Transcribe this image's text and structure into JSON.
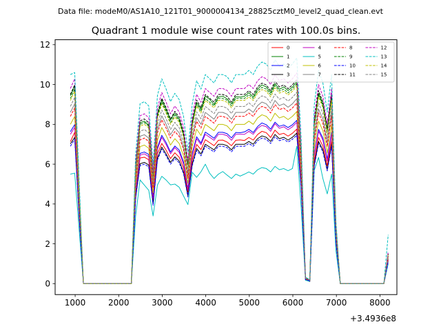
{
  "figure": {
    "suptitle": "Data file: modeM0/AS1A10_121T01_9000004134_28825cztM0_level2_quad_clean.evt",
    "title": "Quadrant 1 module wise count rates with 100.0s bins.",
    "x_offset_label": "+3.4936e8"
  },
  "chart_data": {
    "type": "line",
    "title": "Quadrant 1 module wise count rates with 100.0s bins.",
    "xlabel": "",
    "ylabel": "",
    "x_offset": 349360000,
    "xlim": [
      540,
      8390
    ],
    "ylim": [
      -0.55,
      12.25
    ],
    "xticks": [
      1000,
      2000,
      3000,
      4000,
      5000,
      6000,
      7000,
      8000
    ],
    "xtick_labels": [
      "1000",
      "2000",
      "3000",
      "4000",
      "5000",
      "6000",
      "7000",
      "8000"
    ],
    "yticks": [
      0,
      2,
      4,
      6,
      8,
      10,
      12
    ],
    "ytick_labels": [
      "0",
      "2",
      "4",
      "6",
      "8",
      "10",
      "12"
    ],
    "grid": false,
    "legend_position": "top-right",
    "profile": {
      "x": [
        890,
        990,
        1090,
        1190,
        2290,
        2390,
        2490,
        2590,
        2690,
        2790,
        2890,
        2990,
        3090,
        3190,
        3290,
        3390,
        3490,
        3590,
        3690,
        3790,
        3890,
        3990,
        4090,
        4190,
        4290,
        4390,
        4490,
        4590,
        4690,
        4790,
        4890,
        4990,
        5090,
        5190,
        5290,
        5390,
        5490,
        5590,
        5690,
        5790,
        5890,
        5990,
        6090,
        6190,
        6290,
        6390,
        6490,
        6590,
        6690,
        6790,
        6890,
        6990,
        7090,
        8090,
        8190
      ],
      "w": [
        1.0,
        1.0,
        0.5,
        0.0,
        0.0,
        0.62,
        0.86,
        0.87,
        0.85,
        0.57,
        0.9,
        0.98,
        0.93,
        0.87,
        0.91,
        0.88,
        0.8,
        0.63,
        0.86,
        0.97,
        0.93,
        1.0,
        0.98,
        0.96,
        1.0,
        1.0,
        0.99,
        0.96,
        1.0,
        1.0,
        1.0,
        1.02,
        1.0,
        1.04,
        1.06,
        1.05,
        1.02,
        1.07,
        1.04,
        1.05,
        1.03,
        1.05,
        1.08,
        0.7,
        0.03,
        0.02,
        0.85,
        1.02,
        0.96,
        0.82,
        1.0,
        0.3,
        0.0,
        0.0,
        0.16
      ]
    },
    "series": [
      {
        "name": "0",
        "color": "#ff0000",
        "dashed": false,
        "level": 7.2,
        "values": [
          7.13,
          7.6,
          3.4,
          0,
          0,
          4.62,
          6.31,
          6.35,
          6.22,
          4.11,
          6.53,
          7.04,
          6.7,
          6.28,
          6.57,
          6.35,
          5.81,
          4.6,
          6.23,
          6.99,
          6.73,
          7.23,
          7.08,
          6.93,
          7.2,
          7.21,
          7.11,
          6.93,
          7.2,
          7.22,
          7.19,
          7.34,
          7.21,
          7.49,
          7.65,
          7.58,
          7.34,
          7.71,
          7.49,
          7.55,
          7.41,
          7.55,
          7.76,
          5.02,
          0.2,
          0.1,
          6.12,
          7.34,
          6.91,
          5.92,
          7.19,
          2.15,
          0,
          0,
          1.2
        ]
      },
      {
        "name": "1",
        "color": "#008000",
        "dashed": false,
        "level": 9.4,
        "values": [
          9.44,
          9.91,
          4.72,
          0,
          0,
          5.87,
          8.08,
          8.16,
          7.96,
          5.39,
          8.49,
          9.22,
          8.74,
          8.22,
          8.56,
          8.25,
          7.51,
          5.94,
          8.12,
          9.1,
          8.76,
          9.42,
          9.25,
          9.0,
          9.38,
          9.41,
          9.28,
          9.03,
          9.39,
          9.37,
          9.41,
          9.59,
          9.38,
          9.77,
          9.98,
          9.88,
          9.59,
          10.05,
          9.76,
          9.88,
          9.7,
          9.87,
          10.15,
          6.58,
          0.28,
          0.19,
          7.99,
          9.56,
          9.02,
          7.72,
          9.4,
          2.82,
          0,
          0,
          1.5
        ]
      },
      {
        "name": "2",
        "color": "#0000ff",
        "dashed": false,
        "level": 7.6,
        "values": [
          7.63,
          7.99,
          3.81,
          0,
          0,
          4.69,
          6.54,
          6.61,
          6.49,
          4.35,
          6.84,
          7.45,
          7.08,
          6.61,
          6.91,
          6.71,
          6.1,
          4.77,
          6.54,
          7.38,
          7.06,
          7.61,
          7.46,
          7.3,
          7.6,
          7.6,
          7.53,
          7.32,
          7.59,
          7.58,
          7.62,
          7.75,
          7.59,
          7.89,
          8.07,
          7.98,
          7.76,
          8.11,
          7.9,
          7.97,
          7.84,
          7.98,
          8.2,
          5.31,
          0.23,
          0.15,
          6.45,
          7.75,
          7.31,
          6.25,
          7.6,
          2.28,
          0,
          0,
          1.25
        ]
      },
      {
        "name": "3",
        "color": "#000000",
        "dashed": false,
        "level": 7.0,
        "values": [
          7.02,
          7.35,
          3.51,
          0,
          0,
          4.34,
          6.02,
          6.09,
          5.96,
          4.0,
          6.3,
          6.86,
          6.51,
          6.09,
          6.37,
          6.16,
          5.6,
          4.41,
          6.02,
          6.79,
          6.51,
          7.0,
          6.86,
          6.72,
          7.0,
          7.0,
          6.93,
          6.72,
          7.0,
          7.0,
          7.0,
          7.14,
          7.0,
          7.28,
          7.42,
          7.35,
          7.14,
          7.49,
          7.28,
          7.35,
          7.21,
          7.35,
          7.56,
          4.9,
          0.21,
          0.14,
          5.95,
          7.14,
          6.72,
          5.74,
          7.0,
          2.1,
          0,
          0,
          1.15
        ]
      },
      {
        "name": "4",
        "color": "#bf00bf",
        "dashed": false,
        "level": 7.5,
        "values": [
          7.5,
          7.85,
          3.75,
          0,
          0,
          4.65,
          6.45,
          6.52,
          6.38,
          4.28,
          6.75,
          7.35,
          6.98,
          6.52,
          6.83,
          6.6,
          6.0,
          4.72,
          6.45,
          7.28,
          6.98,
          7.5,
          7.35,
          7.2,
          7.5,
          7.5,
          7.43,
          7.2,
          7.5,
          7.5,
          7.5,
          7.65,
          7.5,
          7.8,
          7.95,
          7.88,
          7.65,
          8.03,
          7.8,
          7.88,
          7.73,
          7.88,
          8.1,
          5.25,
          0.22,
          0.15,
          6.38,
          7.65,
          7.2,
          6.15,
          7.5,
          2.25,
          0,
          0,
          1.2
        ]
      },
      {
        "name": "5",
        "color": "#00bfbf",
        "dashed": false,
        "level": 5.5,
        "values": [
          5.5,
          5.55,
          2.75,
          0,
          0,
          3.41,
          5.21,
          4.95,
          4.69,
          3.4,
          4.95,
          5.39,
          5.2,
          4.96,
          5.0,
          4.84,
          4.4,
          3.97,
          5.59,
          5.34,
          5.62,
          6.0,
          5.54,
          5.28,
          5.5,
          5.63,
          5.45,
          5.28,
          5.5,
          5.4,
          5.5,
          5.61,
          5.5,
          5.72,
          5.83,
          5.78,
          5.61,
          5.89,
          5.72,
          5.78,
          5.67,
          5.78,
          6.9,
          3.85,
          0.17,
          0.11,
          5.68,
          6.34,
          5.28,
          4.51,
          5.5,
          1.65,
          0,
          0,
          1.0
        ]
      },
      {
        "name": "6",
        "color": "#bfbf00",
        "dashed": false,
        "level": 8.0,
        "values": [
          8.0,
          8.4,
          4.0,
          0,
          0,
          4.96,
          6.88,
          6.96,
          6.8,
          4.56,
          7.2,
          7.84,
          7.44,
          6.96,
          7.28,
          7.04,
          6.4,
          5.04,
          6.88,
          7.76,
          7.44,
          8.0,
          7.84,
          7.68,
          8.0,
          8.0,
          7.92,
          7.68,
          8.0,
          8.0,
          8.0,
          8.16,
          8.0,
          8.32,
          8.48,
          8.4,
          8.16,
          8.56,
          8.32,
          8.4,
          8.24,
          8.4,
          8.64,
          5.6,
          0.24,
          0.16,
          6.8,
          8.16,
          7.68,
          6.56,
          8.0,
          2.4,
          0,
          0,
          1.3
        ]
      },
      {
        "name": "7",
        "color": "#808080",
        "dashed": false,
        "level": 8.6,
        "values": [
          8.6,
          9.03,
          4.3,
          0,
          0,
          5.33,
          7.4,
          7.48,
          7.31,
          4.9,
          7.74,
          8.43,
          8.0,
          7.48,
          7.83,
          7.57,
          6.88,
          5.42,
          7.4,
          8.34,
          8.0,
          8.6,
          8.43,
          8.26,
          8.6,
          8.6,
          8.51,
          8.26,
          8.6,
          8.6,
          8.6,
          8.77,
          8.6,
          8.94,
          9.12,
          9.03,
          8.77,
          9.2,
          8.94,
          9.03,
          8.86,
          9.03,
          9.29,
          6.02,
          0.26,
          0.17,
          7.31,
          8.77,
          8.26,
          7.05,
          8.6,
          2.58,
          0,
          0,
          1.4
        ]
      },
      {
        "name": "8",
        "color": "#ff0000",
        "dashed": true,
        "level": 8.4,
        "values": [
          8.4,
          8.82,
          4.2,
          0,
          0,
          5.21,
          7.22,
          7.31,
          7.14,
          4.79,
          7.56,
          8.23,
          7.81,
          7.31,
          7.64,
          7.39,
          6.72,
          5.29,
          7.22,
          8.15,
          7.81,
          8.4,
          8.23,
          8.06,
          8.4,
          8.4,
          8.32,
          8.06,
          8.4,
          8.4,
          8.4,
          8.57,
          8.4,
          8.74,
          8.9,
          8.82,
          8.57,
          8.99,
          8.74,
          8.82,
          8.65,
          8.82,
          9.07,
          5.88,
          0.25,
          0.17,
          7.14,
          8.57,
          8.06,
          6.89,
          8.4,
          2.52,
          0,
          0,
          1.35
        ]
      },
      {
        "name": "9",
        "color": "#008000",
        "dashed": true,
        "level": 9.3,
        "values": [
          9.3,
          9.77,
          4.65,
          0,
          0,
          5.77,
          8.0,
          8.09,
          7.91,
          5.3,
          8.37,
          9.11,
          8.65,
          8.09,
          8.46,
          8.18,
          7.44,
          5.86,
          8.0,
          9.02,
          8.65,
          9.3,
          9.11,
          8.93,
          9.3,
          9.3,
          9.21,
          8.93,
          9.3,
          9.3,
          9.3,
          9.49,
          9.3,
          9.67,
          9.86,
          9.77,
          9.49,
          9.95,
          9.67,
          9.77,
          9.58,
          9.77,
          10.04,
          6.51,
          0.28,
          0.19,
          7.91,
          9.49,
          8.93,
          7.63,
          9.3,
          2.79,
          0,
          0,
          1.5
        ]
      },
      {
        "name": "10",
        "color": "#0000ff",
        "dashed": true,
        "level": 6.9,
        "values": [
          6.9,
          7.25,
          3.45,
          0,
          0,
          4.28,
          5.93,
          6.0,
          5.87,
          3.93,
          6.21,
          6.76,
          6.42,
          6.0,
          6.28,
          6.07,
          5.52,
          4.35,
          5.93,
          6.69,
          6.42,
          6.9,
          6.76,
          6.62,
          6.9,
          6.9,
          6.83,
          6.62,
          6.9,
          6.9,
          6.9,
          7.04,
          6.9,
          7.18,
          7.31,
          7.25,
          7.04,
          7.38,
          7.18,
          7.25,
          7.11,
          7.25,
          7.45,
          4.83,
          0.21,
          0.14,
          5.87,
          7.04,
          6.62,
          5.66,
          6.9,
          2.07,
          0,
          0,
          1.1
        ]
      },
      {
        "name": "11",
        "color": "#000000",
        "dashed": true,
        "level": 9.5,
        "values": [
          9.5,
          9.98,
          4.75,
          0,
          0,
          5.89,
          8.17,
          8.27,
          8.08,
          5.42,
          8.55,
          9.31,
          8.84,
          8.27,
          8.65,
          8.36,
          7.6,
          5.99,
          8.17,
          9.22,
          8.84,
          9.5,
          9.31,
          9.12,
          9.5,
          9.5,
          9.41,
          9.12,
          9.5,
          9.5,
          9.5,
          9.69,
          9.5,
          9.88,
          10.07,
          9.98,
          9.69,
          10.17,
          9.88,
          9.98,
          9.79,
          9.98,
          10.26,
          6.65,
          0.29,
          0.19,
          8.08,
          9.69,
          9.12,
          7.79,
          9.5,
          2.85,
          0,
          0,
          1.5
        ]
      },
      {
        "name": "12",
        "color": "#bf00bf",
        "dashed": true,
        "level": 9.8,
        "values": [
          9.8,
          10.29,
          4.9,
          0,
          0,
          6.08,
          8.43,
          8.53,
          8.33,
          5.59,
          8.82,
          9.6,
          9.11,
          8.53,
          8.92,
          8.62,
          7.84,
          6.17,
          8.43,
          9.51,
          9.11,
          9.8,
          9.6,
          9.41,
          9.8,
          9.8,
          9.7,
          9.41,
          9.8,
          9.8,
          9.8,
          10.0,
          9.8,
          10.19,
          10.39,
          10.29,
          10.0,
          10.49,
          10.19,
          10.29,
          10.09,
          10.29,
          10.58,
          6.86,
          0.29,
          0.2,
          8.33,
          10.0,
          9.41,
          8.04,
          9.8,
          2.94,
          0,
          0,
          1.6
        ]
      },
      {
        "name": "13",
        "color": "#00bfbf",
        "dashed": true,
        "level": 10.5,
        "values": [
          10.5,
          10.6,
          5.25,
          0,
          0,
          6.51,
          9.03,
          9.14,
          8.93,
          5.99,
          9.45,
          10.29,
          9.77,
          9.14,
          9.56,
          9.24,
          8.4,
          6.62,
          9.03,
          10.19,
          9.77,
          10.5,
          10.29,
          10.08,
          10.5,
          10.5,
          10.4,
          10.08,
          10.5,
          10.5,
          10.5,
          10.71,
          10.5,
          10.92,
          11.13,
          11.03,
          10.71,
          11.24,
          10.92,
          11.03,
          10.82,
          11.03,
          11.34,
          7.35,
          0.32,
          0.21,
          8.93,
          10.71,
          10.08,
          8.61,
          10.5,
          3.15,
          0,
          0,
          2.45
        ]
      },
      {
        "name": "14",
        "color": "#bfbf00",
        "dashed": true,
        "level": 9.2,
        "values": [
          9.2,
          9.66,
          4.6,
          0,
          0,
          5.7,
          7.91,
          8.0,
          7.82,
          5.24,
          8.28,
          9.02,
          8.56,
          8.0,
          8.37,
          8.1,
          7.36,
          5.8,
          7.91,
          8.92,
          8.56,
          9.2,
          9.02,
          8.83,
          9.2,
          9.2,
          9.11,
          8.83,
          9.2,
          9.2,
          9.2,
          9.38,
          9.2,
          9.57,
          9.75,
          9.66,
          9.38,
          9.84,
          9.57,
          9.66,
          9.48,
          9.66,
          9.94,
          6.44,
          0.28,
          0.18,
          7.82,
          9.38,
          8.83,
          7.54,
          9.2,
          2.76,
          0,
          0,
          1.45
        ]
      },
      {
        "name": "15",
        "color": "#808080",
        "dashed": true,
        "level": 8.9,
        "values": [
          8.9,
          9.35,
          4.45,
          0,
          0,
          5.52,
          7.65,
          7.74,
          7.57,
          5.07,
          8.01,
          8.72,
          8.28,
          7.74,
          8.1,
          7.83,
          7.12,
          5.61,
          7.65,
          8.63,
          8.28,
          8.9,
          8.72,
          8.54,
          8.9,
          8.9,
          8.81,
          8.54,
          8.9,
          8.9,
          8.9,
          9.08,
          8.9,
          9.26,
          9.43,
          9.35,
          9.08,
          9.52,
          9.26,
          9.35,
          9.17,
          9.35,
          9.61,
          6.23,
          0.27,
          0.18,
          7.57,
          9.08,
          8.54,
          7.3,
          8.9,
          2.67,
          0,
          0,
          1.4
        ]
      }
    ]
  }
}
